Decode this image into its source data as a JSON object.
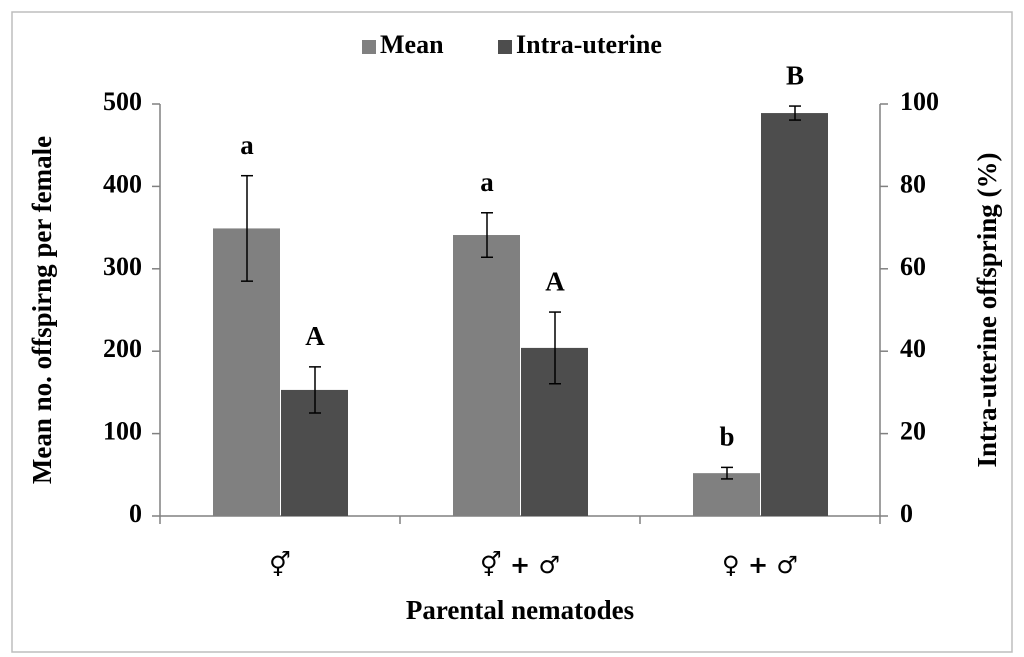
{
  "chart_data": {
    "type": "bar",
    "x_label": "Parental nematodes",
    "y_label": "Mean no. offspirng per female",
    "y2_label": "Intra-uterine offspring (%)",
    "categories": [
      "⚥",
      "⚥ + ♂",
      "♀ + ♂"
    ],
    "series": [
      {
        "name": "Mean",
        "color": "#808080",
        "values": [
          349,
          341,
          52
        ],
        "errors": [
          64,
          27,
          7
        ],
        "letters": [
          "a",
          "a",
          "b"
        ]
      },
      {
        "name": "Intra-uterine",
        "color": "#4d4d4d",
        "axis": "y2",
        "values": [
          30.6,
          40.8,
          97.8
        ],
        "errors": [
          5.6,
          8.7,
          1.7
        ],
        "letters": [
          "A",
          "A",
          "B"
        ]
      }
    ],
    "ylim": [
      0,
      500
    ],
    "yticks": [
      0,
      100,
      200,
      300,
      400,
      500
    ],
    "y2lim": [
      0,
      100
    ],
    "y2ticks": [
      0,
      20,
      40,
      60,
      80,
      100
    ],
    "legend": "top"
  }
}
